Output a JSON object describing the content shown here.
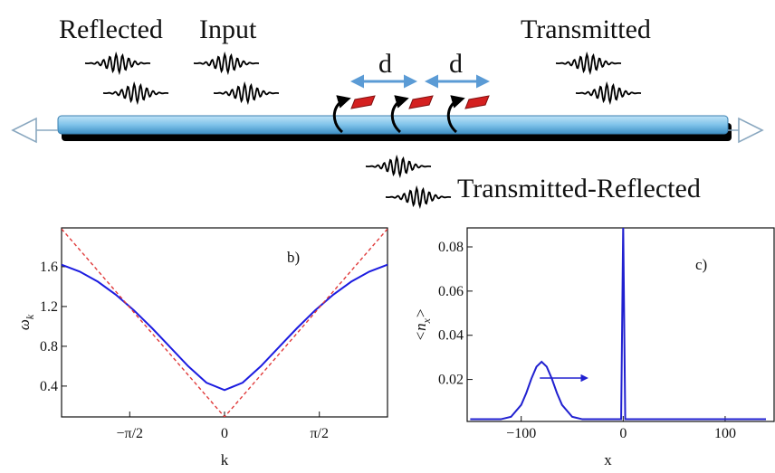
{
  "diagram": {
    "reflected": "Reflected",
    "input": "Input",
    "transmitted": "Transmitted",
    "transmitted_reflected": "Transmitted-Reflected",
    "spacing_labels": [
      "d",
      "d"
    ]
  },
  "chart_data": [
    {
      "type": "line",
      "panel_label": "b)",
      "xlabel": "k",
      "ylabel": [
        "ω",
        "k"
      ],
      "x": [
        -2.7,
        -2.4,
        -2.1,
        -1.8,
        -1.5,
        -1.2,
        -0.9,
        -0.6,
        -0.3,
        0,
        0.3,
        0.6,
        0.9,
        1.2,
        1.5,
        1.8,
        2.1,
        2.4,
        2.7
      ],
      "series": [
        {
          "color": "#1c1ce0",
          "dash": false,
          "values": [
            1.62,
            1.551,
            1.45,
            1.318,
            1.161,
            0.982,
            0.791,
            0.599,
            0.434,
            0.36,
            0.434,
            0.599,
            0.791,
            0.982,
            1.161,
            1.318,
            1.45,
            1.551,
            1.62
          ]
        },
        {
          "color": "#e03a3a",
          "dash": true,
          "values": [
            1.98,
            1.77,
            1.56,
            1.35,
            1.14,
            0.93,
            0.72,
            0.51,
            0.3,
            0.09,
            0.3,
            0.51,
            0.72,
            0.93,
            1.14,
            1.35,
            1.56,
            1.77,
            1.98
          ]
        }
      ],
      "xlim": [
        -2.7,
        2.7
      ],
      "ylim": [
        0.09,
        1.99
      ],
      "xticks": [
        {
          "value": -1.5708,
          "label": "−π/2"
        },
        0,
        {
          "value": 1.5708,
          "label": "π/2"
        }
      ],
      "yticks": [
        0.4,
        0.8,
        1.2,
        1.6
      ]
    },
    {
      "type": "line",
      "panel_label": "c)",
      "xlabel": "x",
      "ylabel": [
        "<n",
        "x",
        ">"
      ],
      "x": [
        -150,
        -140,
        -130,
        -120,
        -110,
        -100,
        -95,
        -90,
        -85,
        -80,
        -75,
        -70,
        -65,
        -60,
        -50,
        -40,
        -30,
        -20,
        -10,
        -2,
        0,
        2,
        10,
        20,
        30,
        40,
        50,
        60,
        70,
        80,
        90,
        100,
        110,
        120,
        130,
        140
      ],
      "series": [
        {
          "color": "#2020d0",
          "dash": false,
          "values": [
            0.002,
            0.002,
            0.002,
            0.002,
            0.0031,
            0.0085,
            0.0139,
            0.0204,
            0.0258,
            0.028,
            0.0258,
            0.0204,
            0.0139,
            0.0085,
            0.0031,
            0.002,
            0.002,
            0.002,
            0.002,
            0.002,
            0.09,
            0.002,
            0.002,
            0.002,
            0.002,
            0.002,
            0.002,
            0.002,
            0.002,
            0.002,
            0.002,
            0.002,
            0.002,
            0.002,
            0.002,
            0.002
          ]
        }
      ],
      "xlim": [
        -153,
        148
      ],
      "ylim": [
        0.001,
        0.0886
      ],
      "xticks": [
        {
          "value": -100,
          "label": "−100"
        },
        0,
        100
      ],
      "yticks": [
        0.02,
        0.04,
        0.06,
        0.08
      ]
    }
  ]
}
